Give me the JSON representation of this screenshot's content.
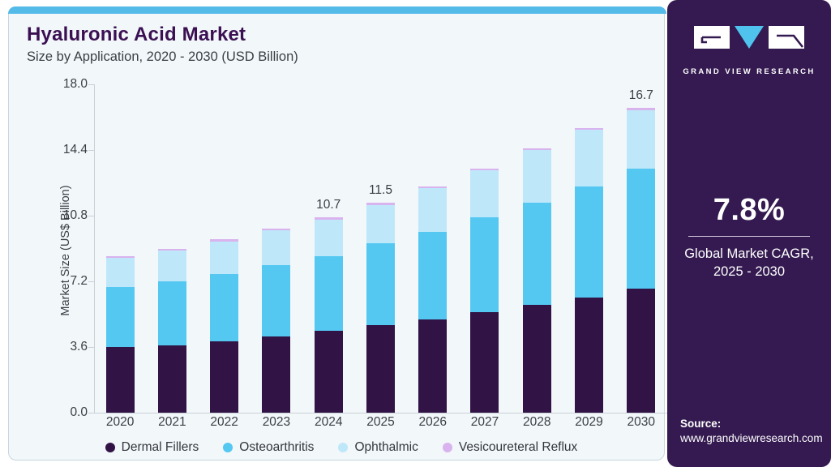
{
  "header": {
    "title": "Hyaluronic Acid Market",
    "subtitle": "Size by Application, 2020 - 2030 (USD Billion)"
  },
  "chart_data": {
    "type": "bar",
    "stacked": true,
    "title": "Hyaluronic Acid Market Size by Application, 2020 - 2030 (USD Billion)",
    "categories": [
      "2020",
      "2021",
      "2022",
      "2023",
      "2024",
      "2025",
      "2026",
      "2027",
      "2028",
      "2029",
      "2030"
    ],
    "series": [
      {
        "name": "Dermal Fillers",
        "color": "#311345",
        "values": [
          3.6,
          3.7,
          3.9,
          4.2,
          4.5,
          4.8,
          5.1,
          5.5,
          5.9,
          6.3,
          6.8
        ]
      },
      {
        "name": "Osteoarthritis",
        "color": "#55C8F2",
        "values": [
          3.3,
          3.5,
          3.7,
          3.9,
          4.1,
          4.5,
          4.8,
          5.2,
          5.6,
          6.1,
          6.6
        ]
      },
      {
        "name": "Ophthalmic",
        "color": "#BEE8FA",
        "values": [
          1.6,
          1.7,
          1.8,
          1.9,
          2.0,
          2.1,
          2.4,
          2.6,
          2.9,
          3.1,
          3.2
        ]
      },
      {
        "name": "Vesicoureteral Reflux",
        "color": "#D9B3EE",
        "values": [
          0.1,
          0.1,
          0.1,
          0.1,
          0.1,
          0.1,
          0.1,
          0.1,
          0.1,
          0.1,
          0.1
        ]
      }
    ],
    "totals": [
      8.6,
      9.0,
      9.5,
      10.1,
      10.7,
      11.5,
      12.4,
      13.4,
      14.5,
      15.6,
      16.7
    ],
    "total_labels": {
      "2024": "10.7",
      "2025": "11.5",
      "2030": "16.7"
    },
    "ylabel": "Market Size (US$ Billion)",
    "yticks": [
      "18.0",
      "14.4",
      "10.8",
      "7.2",
      "3.6",
      "0.0"
    ],
    "ylim": [
      0,
      18
    ],
    "grid": false,
    "legend_position": "bottom"
  },
  "sidebar": {
    "brand": "GRAND VIEW RESEARCH",
    "cagr_value": "7.8%",
    "cagr_line1": "Global Market CAGR,",
    "cagr_line2": "2025 - 2030",
    "source_label": "Source:",
    "source_url": "www.grandviewresearch.com"
  },
  "colors": {
    "card_bg": "#F2F7FA",
    "card_border": "#C9D6DE",
    "top_strip": "#54BAE8",
    "title": "#3B1053",
    "text": "#3A3F45",
    "axis": "#C9D0D6",
    "sidebar_bg": "#341A50",
    "logo_triangle": "#4FC3EE"
  }
}
